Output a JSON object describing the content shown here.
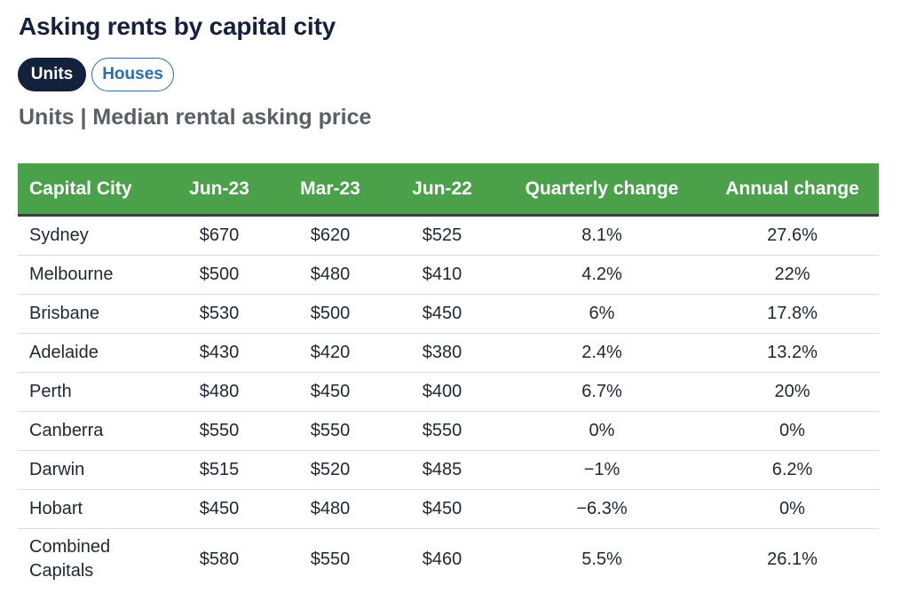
{
  "title": "Asking rents by capital city",
  "tabs": [
    {
      "label": "Units",
      "active": true
    },
    {
      "label": "Houses",
      "active": false
    }
  ],
  "subtitle": "Units | Median rental asking price",
  "colors": {
    "header_green": "#4aa14a",
    "navy": "#14213d",
    "link_blue": "#2b6cb0"
  },
  "chart_data": {
    "type": "table",
    "columns": [
      "Capital City",
      "Jun-23",
      "Mar-23",
      "Jun-22",
      "Quarterly change",
      "Annual change"
    ],
    "rows": [
      [
        "Sydney",
        "$670",
        "$620",
        "$525",
        "8.1%",
        "27.6%"
      ],
      [
        "Melbourne",
        "$500",
        "$480",
        "$410",
        "4.2%",
        "22%"
      ],
      [
        "Brisbane",
        "$530",
        "$500",
        "$450",
        "6%",
        "17.8%"
      ],
      [
        "Adelaide",
        "$430",
        "$420",
        "$380",
        "2.4%",
        "13.2%"
      ],
      [
        "Perth",
        "$480",
        "$450",
        "$400",
        "6.7%",
        "20%"
      ],
      [
        "Canberra",
        "$550",
        "$550",
        "$550",
        "0%",
        "0%"
      ],
      [
        "Darwin",
        "$515",
        "$520",
        "$485",
        "−1%",
        "6.2%"
      ],
      [
        "Hobart",
        "$450",
        "$480",
        "$450",
        "−6.3%",
        "0%"
      ],
      [
        "Combined Capitals",
        "$580",
        "$550",
        "$460",
        "5.5%",
        "26.1%"
      ]
    ]
  }
}
